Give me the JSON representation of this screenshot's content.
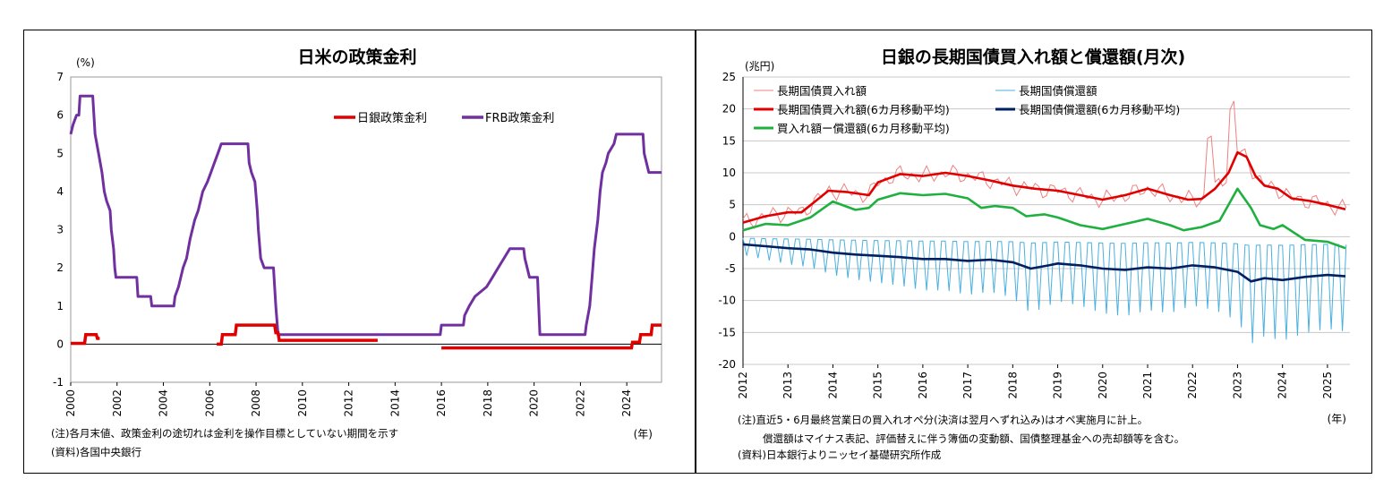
{
  "left_panel": {
    "notes": [
      "(注)各月末値、政策金利の途切れは金利を操作目標としていない期間を示す",
      "(資料)各国中央銀行"
    ]
  },
  "right_panel": {
    "notes": [
      "(注)直近5・6月最終営業日の買入れオペ分(決済は翌月へずれ込み)はオペ実施月に計上。",
      "償還額はマイナス表記、評価替えに伴う簿価の変動額、国債整理基金への売却額等を含む。",
      "(資料)日本銀行よりニッセイ基礎研究所作成"
    ]
  },
  "chart_data": [
    {
      "type": "line",
      "title": "日米の政策金利",
      "ylabel": "(%)",
      "xlabel": "(年)",
      "ylim": [
        -1,
        7
      ],
      "yticks": [
        "7",
        "6",
        "5",
        "4",
        "3",
        "2",
        "1",
        "0",
        "-1"
      ],
      "xticks": [
        "2000",
        "2002",
        "2004",
        "2006",
        "2008",
        "2010",
        "2012",
        "2014",
        "2016",
        "2018",
        "2020",
        "2022",
        "2024"
      ],
      "xlim": [
        2000,
        2025.5
      ],
      "legend": [
        "日銀政策金利",
        "FRB政策金利"
      ],
      "legend_position": "top-right",
      "colors": {
        "boj": "#e00000",
        "frb": "#7030a0"
      },
      "series": [
        {
          "name": "日銀政策金利",
          "segments": [
            [
              [
                2000.0,
                0.02
              ],
              [
                2000.6,
                0.02
              ],
              [
                2000.65,
                0.25
              ],
              [
                2001.1,
                0.25
              ],
              [
                2001.15,
                0.15
              ],
              [
                2001.25,
                0.15
              ]
            ],
            [
              [
                2006.3,
                0.0
              ],
              [
                2006.5,
                0.0
              ],
              [
                2006.55,
                0.25
              ],
              [
                2007.1,
                0.25
              ],
              [
                2007.15,
                0.5
              ],
              [
                2008.8,
                0.5
              ],
              [
                2008.85,
                0.3
              ],
              [
                2008.95,
                0.3
              ],
              [
                2009.0,
                0.1
              ],
              [
                2013.25,
                0.1
              ]
            ],
            [
              [
                2016.0,
                -0.1
              ],
              [
                2024.2,
                -0.1
              ],
              [
                2024.25,
                0.05
              ],
              [
                2024.55,
                0.05
              ],
              [
                2024.6,
                0.25
              ],
              [
                2025.05,
                0.25
              ],
              [
                2025.1,
                0.5
              ],
              [
                2025.5,
                0.5
              ]
            ]
          ]
        },
        {
          "name": "FRB政策金利",
          "points": [
            [
              2000.0,
              5.5
            ],
            [
              2000.1,
              5.75
            ],
            [
              2000.25,
              6.0
            ],
            [
              2000.35,
              6.0
            ],
            [
              2000.4,
              6.5
            ],
            [
              2000.95,
              6.5
            ],
            [
              2001.05,
              5.5
            ],
            [
              2001.2,
              5.0
            ],
            [
              2001.35,
              4.5
            ],
            [
              2001.45,
              4.0
            ],
            [
              2001.55,
              3.75
            ],
            [
              2001.7,
              3.5
            ],
            [
              2001.75,
              3.0
            ],
            [
              2001.85,
              2.5
            ],
            [
              2001.9,
              2.0
            ],
            [
              2001.95,
              1.75
            ],
            [
              2002.85,
              1.75
            ],
            [
              2002.9,
              1.25
            ],
            [
              2003.45,
              1.25
            ],
            [
              2003.5,
              1.0
            ],
            [
              2004.45,
              1.0
            ],
            [
              2004.5,
              1.25
            ],
            [
              2004.65,
              1.5
            ],
            [
              2004.85,
              2.0
            ],
            [
              2005.0,
              2.25
            ],
            [
              2005.15,
              2.75
            ],
            [
              2005.35,
              3.25
            ],
            [
              2005.5,
              3.5
            ],
            [
              2005.7,
              4.0
            ],
            [
              2005.9,
              4.25
            ],
            [
              2006.05,
              4.5
            ],
            [
              2006.2,
              4.75
            ],
            [
              2006.35,
              5.0
            ],
            [
              2006.5,
              5.25
            ],
            [
              2007.65,
              5.25
            ],
            [
              2007.7,
              4.75
            ],
            [
              2007.8,
              4.5
            ],
            [
              2007.95,
              4.25
            ],
            [
              2008.05,
              3.5
            ],
            [
              2008.1,
              3.0
            ],
            [
              2008.2,
              2.25
            ],
            [
              2008.35,
              2.0
            ],
            [
              2008.75,
              2.0
            ],
            [
              2008.8,
              1.5
            ],
            [
              2008.85,
              1.0
            ],
            [
              2008.95,
              0.25
            ],
            [
              2015.95,
              0.25
            ],
            [
              2016.0,
              0.5
            ],
            [
              2016.95,
              0.5
            ],
            [
              2017.0,
              0.75
            ],
            [
              2017.2,
              1.0
            ],
            [
              2017.45,
              1.25
            ],
            [
              2017.95,
              1.5
            ],
            [
              2018.2,
              1.75
            ],
            [
              2018.45,
              2.0
            ],
            [
              2018.7,
              2.25
            ],
            [
              2018.95,
              2.5
            ],
            [
              2019.55,
              2.5
            ],
            [
              2019.6,
              2.25
            ],
            [
              2019.7,
              2.0
            ],
            [
              2019.8,
              1.75
            ],
            [
              2020.15,
              1.75
            ],
            [
              2020.2,
              1.0
            ],
            [
              2020.25,
              0.25
            ],
            [
              2022.2,
              0.25
            ],
            [
              2022.25,
              0.5
            ],
            [
              2022.4,
              1.0
            ],
            [
              2022.5,
              1.75
            ],
            [
              2022.6,
              2.5
            ],
            [
              2022.75,
              3.25
            ],
            [
              2022.85,
              4.0
            ],
            [
              2022.95,
              4.5
            ],
            [
              2023.1,
              4.75
            ],
            [
              2023.2,
              5.0
            ],
            [
              2023.45,
              5.25
            ],
            [
              2023.55,
              5.5
            ],
            [
              2024.7,
              5.5
            ],
            [
              2024.75,
              5.0
            ],
            [
              2024.85,
              4.75
            ],
            [
              2024.95,
              4.5
            ],
            [
              2025.5,
              4.5
            ]
          ]
        }
      ]
    },
    {
      "type": "line",
      "title": "日銀の長期国債買入れ額と償還額(月次)",
      "ylabel": "(兆円)",
      "xlabel": "(年)",
      "ylim": [
        -20,
        25
      ],
      "yticks": [
        "25",
        "20",
        "15",
        "10",
        "5",
        "0",
        "-5",
        "-10",
        "-15",
        "-20"
      ],
      "xticks": [
        "2012",
        "2013",
        "2014",
        "2015",
        "2016",
        "2017",
        "2018",
        "2019",
        "2020",
        "2021",
        "2022",
        "2023",
        "2024",
        "2025"
      ],
      "xlim": [
        2012,
        2025.5
      ],
      "legend": [
        "長期国債買入れ額",
        "長期国債償還額",
        "長期国債買入れ額(6カ月移動平均)",
        "長期国債償還額(6カ月移動平均)",
        "買入れ額ー償還額(6カ月移動平均)"
      ],
      "legend_position": "top-left",
      "colors": {
        "purchase": "#f08080",
        "redemption": "#4ab0e0",
        "purchase_ma": "#e00000",
        "redemption_ma": "#002060",
        "net_ma": "#20b040"
      },
      "series": [
        {
          "name": "長期国債買入れ額(6カ月移動平均)",
          "points": [
            [
              2012.0,
              2.2
            ],
            [
              2012.5,
              3.2
            ],
            [
              2013.0,
              3.8
            ],
            [
              2013.3,
              3.8
            ],
            [
              2013.6,
              5.5
            ],
            [
              2013.9,
              7.2
            ],
            [
              2014.3,
              7.0
            ],
            [
              2014.8,
              6.5
            ],
            [
              2015.0,
              8.5
            ],
            [
              2015.5,
              9.8
            ],
            [
              2016.0,
              9.5
            ],
            [
              2016.5,
              10.0
            ],
            [
              2017.0,
              9.5
            ],
            [
              2017.5,
              8.8
            ],
            [
              2018.0,
              8.0
            ],
            [
              2018.5,
              7.5
            ],
            [
              2019.0,
              7.2
            ],
            [
              2019.5,
              6.5
            ],
            [
              2020.0,
              5.8
            ],
            [
              2020.5,
              6.5
            ],
            [
              2021.0,
              7.5
            ],
            [
              2021.5,
              6.5
            ],
            [
              2021.9,
              5.8
            ],
            [
              2022.2,
              5.9
            ],
            [
              2022.5,
              7.5
            ],
            [
              2022.8,
              10.0
            ],
            [
              2023.0,
              13.2
            ],
            [
              2023.2,
              12.5
            ],
            [
              2023.4,
              9.5
            ],
            [
              2023.6,
              8.0
            ],
            [
              2023.9,
              7.5
            ],
            [
              2024.2,
              6.0
            ],
            [
              2024.6,
              5.6
            ],
            [
              2025.0,
              5.0
            ],
            [
              2025.4,
              4.3
            ]
          ]
        },
        {
          "name": "長期国債償還額(6カ月移動平均)",
          "points": [
            [
              2012.0,
              -1.2
            ],
            [
              2012.5,
              -1.5
            ],
            [
              2013.0,
              -1.8
            ],
            [
              2013.5,
              -2.0
            ],
            [
              2014.0,
              -2.5
            ],
            [
              2014.5,
              -2.8
            ],
            [
              2015.0,
              -3.0
            ],
            [
              2015.5,
              -3.2
            ],
            [
              2016.0,
              -3.5
            ],
            [
              2016.5,
              -3.5
            ],
            [
              2017.0,
              -3.8
            ],
            [
              2017.5,
              -3.6
            ],
            [
              2018.0,
              -4.0
            ],
            [
              2018.4,
              -5.0
            ],
            [
              2018.8,
              -4.5
            ],
            [
              2019.0,
              -4.2
            ],
            [
              2019.5,
              -4.5
            ],
            [
              2020.0,
              -5.0
            ],
            [
              2020.5,
              -5.2
            ],
            [
              2021.0,
              -4.8
            ],
            [
              2021.5,
              -5.0
            ],
            [
              2022.0,
              -4.5
            ],
            [
              2022.5,
              -4.8
            ],
            [
              2023.0,
              -5.5
            ],
            [
              2023.3,
              -7.0
            ],
            [
              2023.6,
              -6.5
            ],
            [
              2024.0,
              -6.8
            ],
            [
              2024.5,
              -6.3
            ],
            [
              2025.0,
              -6.0
            ],
            [
              2025.4,
              -6.2
            ]
          ]
        },
        {
          "name": "買入れ額ー償還額(6カ月移動平均)",
          "points": [
            [
              2012.0,
              1.0
            ],
            [
              2012.5,
              2.0
            ],
            [
              2013.0,
              1.8
            ],
            [
              2013.5,
              3.0
            ],
            [
              2014.0,
              5.5
            ],
            [
              2014.5,
              4.2
            ],
            [
              2014.8,
              4.5
            ],
            [
              2015.0,
              5.8
            ],
            [
              2015.5,
              6.8
            ],
            [
              2016.0,
              6.5
            ],
            [
              2016.5,
              6.7
            ],
            [
              2017.0,
              6.0
            ],
            [
              2017.3,
              4.5
            ],
            [
              2017.6,
              4.8
            ],
            [
              2018.0,
              4.5
            ],
            [
              2018.3,
              3.2
            ],
            [
              2018.7,
              3.5
            ],
            [
              2019.0,
              3.0
            ],
            [
              2019.5,
              1.8
            ],
            [
              2020.0,
              1.2
            ],
            [
              2020.5,
              2.0
            ],
            [
              2021.0,
              2.8
            ],
            [
              2021.5,
              1.8
            ],
            [
              2021.8,
              1.0
            ],
            [
              2022.2,
              1.5
            ],
            [
              2022.6,
              2.5
            ],
            [
              2022.8,
              5.0
            ],
            [
              2023.0,
              7.5
            ],
            [
              2023.3,
              4.5
            ],
            [
              2023.5,
              1.8
            ],
            [
              2023.8,
              1.2
            ],
            [
              2024.0,
              1.8
            ],
            [
              2024.5,
              -0.5
            ],
            [
              2025.0,
              -0.8
            ],
            [
              2025.4,
              -1.8
            ]
          ]
        }
      ]
    }
  ]
}
